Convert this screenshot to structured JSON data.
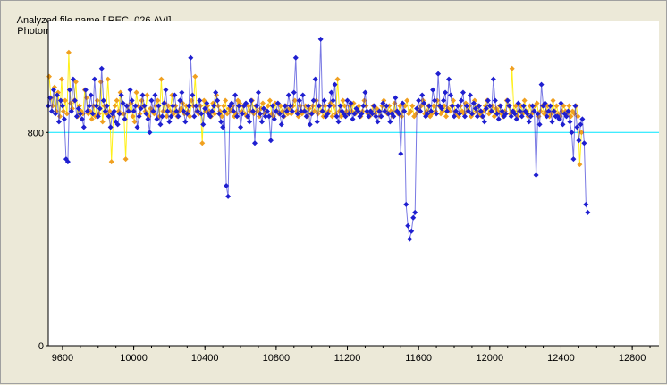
{
  "header": {
    "file_label": "Analyzed file name [ REC_026.AVI]",
    "title": "Photometry in each Frame"
  },
  "colors": {
    "background": "#ece9d8",
    "plot_background": "#ffffff",
    "series_blue": "#1f1fd0",
    "series_orange": "#f0a020",
    "series_orange_line": "#ffee00",
    "reference_line": "#00e5ff"
  },
  "chart_data": {
    "type": "scatter",
    "title": "Photometry in each Frame",
    "xlabel": "",
    "ylabel": "",
    "xlim": [
      9520,
      12950
    ],
    "ylim": [
      0,
      1220
    ],
    "grid": false,
    "legend": "none",
    "x_ticks": [
      9600,
      10000,
      10400,
      10800,
      11200,
      11600,
      12000,
      12400,
      12800
    ],
    "y_ticks": [
      0,
      800
    ],
    "reference_line": 800,
    "series": [
      {
        "color": "blue",
        "x_start": 9520,
        "x_step": 10,
        "values": [
          900,
          930,
          880,
          960,
          870,
          940,
          840,
          920,
          900,
          850,
          700,
          690,
          960,
          880,
          1000,
          920,
          860,
          890,
          870,
          850,
          820,
          960,
          880,
          900,
          940,
          870,
          1000,
          900,
          860,
          890,
          1040,
          920,
          880,
          900,
          860,
          820,
          870,
          880,
          840,
          830,
          870,
          940,
          910,
          850,
          900,
          880,
          960,
          920,
          880,
          900,
          820,
          860,
          890,
          940,
          900,
          870,
          850,
          800,
          920,
          880,
          940,
          850,
          900,
          830,
          860,
          910,
          960,
          880,
          840,
          860,
          900,
          940,
          880,
          860,
          920,
          950,
          880,
          840,
          870,
          900,
          1080,
          940,
          860,
          900,
          880,
          920,
          870,
          830,
          890,
          910,
          870,
          860,
          880,
          900,
          950,
          920,
          870,
          840,
          820,
          880,
          600,
          560,
          900,
          910,
          880,
          940,
          860,
          900,
          820,
          870,
          900,
          910,
          860,
          840,
          920,
          880,
          760,
          900,
          950,
          870,
          840,
          890,
          860,
          880,
          860,
          770,
          900,
          850,
          880,
          910,
          870,
          830,
          860,
          900,
          880,
          940,
          900,
          880,
          950,
          1080,
          870,
          920,
          880,
          940,
          880,
          860,
          900,
          830,
          870,
          920,
          1000,
          840,
          900,
          1150,
          880,
          920,
          860,
          870,
          900,
          950,
          920,
          980,
          860,
          840,
          900,
          880,
          870,
          860,
          920,
          870,
          910,
          850,
          870,
          890,
          880,
          860,
          870,
          900,
          950,
          880,
          860,
          880,
          870,
          900,
          860,
          840,
          880,
          860,
          910,
          880,
          900,
          870,
          840,
          870,
          860,
          930,
          880,
          870,
          720,
          910,
          880,
          530,
          450,
          400,
          430,
          480,
          500,
          890,
          920,
          880,
          940,
          910,
          860,
          870,
          900,
          880,
          960,
          920,
          870,
          1020,
          900,
          890,
          920,
          950,
          880,
          1000,
          940,
          900,
          860,
          880,
          900,
          870,
          920,
          950,
          860,
          900,
          880,
          940,
          870,
          910,
          890,
          860,
          900,
          880,
          860,
          840,
          890,
          920,
          900,
          880,
          1000,
          920,
          870,
          850,
          900,
          880,
          860,
          870,
          920,
          900,
          860,
          880,
          870,
          850,
          910,
          880,
          860,
          900,
          880,
          870,
          840,
          860,
          900,
          880,
          640,
          870,
          830,
          980,
          900,
          910,
          860,
          880,
          900,
          840,
          880,
          860,
          860,
          850,
          910,
          830,
          870,
          860,
          880,
          840,
          800,
          700,
          900,
          820,
          770,
          830,
          850,
          760,
          530,
          500
        ]
      },
      {
        "color": "orange",
        "x_start": 9525,
        "x_step": 10,
        "values": [
          1010,
          930,
          900,
          970,
          880,
          950,
          860,
          1000,
          880,
          920,
          870,
          1100,
          910,
          890,
          920,
          990,
          860,
          900,
          880,
          870,
          960,
          930,
          870,
          880,
          850,
          900,
          860,
          920,
          870,
          990,
          840,
          900,
          870,
          1000,
          880,
          690,
          860,
          900,
          920,
          880,
          950,
          870,
          870,
          700,
          900,
          880,
          910,
          860,
          840,
          950,
          900,
          870,
          920,
          900,
          880,
          940,
          860,
          890,
          880,
          870,
          900,
          920,
          860,
          1000,
          880,
          910,
          860,
          900,
          880,
          940,
          870,
          900,
          860,
          880,
          890,
          910,
          870,
          900,
          880,
          860,
          920,
          900,
          1010,
          880,
          870,
          900,
          760,
          920,
          880,
          900,
          880,
          860,
          910,
          870,
          940,
          900,
          880,
          860,
          900,
          920,
          870,
          890,
          880,
          900,
          860,
          870,
          920,
          910,
          880,
          900,
          870,
          860,
          900,
          880,
          920,
          870,
          900,
          880,
          860,
          890,
          910,
          870,
          880,
          900,
          920,
          870,
          860,
          910,
          880,
          870,
          900,
          880,
          860,
          900,
          870,
          890,
          870,
          900,
          920,
          880,
          860,
          900,
          870,
          880,
          900,
          860,
          890,
          870,
          900,
          880,
          920,
          870,
          900,
          880,
          860,
          900,
          870,
          880,
          910,
          860,
          900,
          870,
          1000,
          880,
          860,
          920,
          900,
          880,
          870,
          900,
          880,
          910,
          870,
          880,
          900,
          860,
          880,
          920,
          900,
          870,
          860,
          880,
          900,
          870,
          890,
          880,
          860,
          900,
          920,
          880,
          870,
          900,
          880,
          860,
          910,
          880,
          870,
          900,
          860,
          880,
          900,
          920,
          870,
          880,
          900,
          860,
          870,
          890,
          880,
          900,
          920,
          870,
          880,
          900,
          860,
          870,
          900,
          880,
          920,
          900,
          870,
          880,
          900,
          860,
          890,
          880,
          900,
          920,
          880,
          870,
          860,
          900,
          880,
          870,
          910,
          880,
          900,
          860,
          870,
          920,
          880,
          900,
          870,
          860,
          880,
          900,
          920,
          870,
          880,
          900,
          860,
          890,
          880,
          900,
          870,
          860,
          880,
          920,
          900,
          870,
          1040,
          880,
          900,
          860,
          880,
          900,
          870,
          920,
          880,
          860,
          900,
          870,
          880,
          900,
          910,
          860,
          880,
          900,
          870,
          880,
          900,
          860,
          870,
          920,
          880,
          900,
          870,
          860,
          880,
          900,
          880,
          870,
          900,
          860,
          880,
          870,
          900,
          860,
          680,
          800
        ]
      }
    ]
  }
}
